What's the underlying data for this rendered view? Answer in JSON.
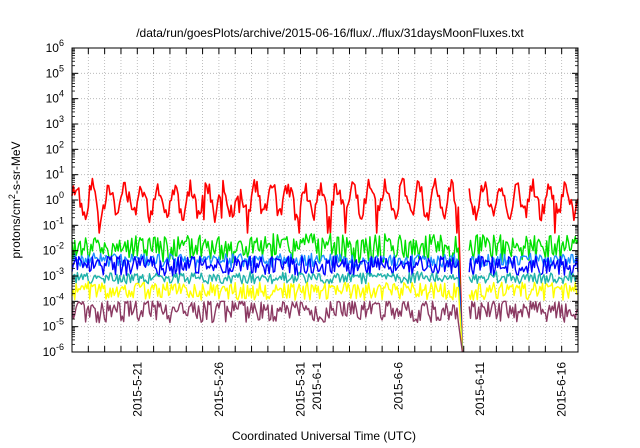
{
  "chart_data": {
    "type": "line",
    "title": "/data/run/goesPlots/archive/2015-06-16/flux/../flux/31daysMoonFluxes.txt",
    "xlabel": "Coordinated Universal Time (UTC)",
    "ylabel": "protons/cm²-s-sr-MeV",
    "yscale": "log",
    "ylim": [
      1e-06,
      1000000.0
    ],
    "xlim": [
      "2015-05-17",
      "2015-06-17"
    ],
    "grid": true,
    "legend": "none",
    "y_ticks": [
      {
        "mant": "10",
        "exp": "-6"
      },
      {
        "mant": "10",
        "exp": "-5"
      },
      {
        "mant": "10",
        "exp": "-4"
      },
      {
        "mant": "10",
        "exp": "-3"
      },
      {
        "mant": "10",
        "exp": "-2"
      },
      {
        "mant": "10",
        "exp": "-1"
      },
      {
        "mant": "10",
        "exp": "0"
      },
      {
        "mant": "10",
        "exp": "1"
      },
      {
        "mant": "10",
        "exp": "2"
      },
      {
        "mant": "10",
        "exp": "3"
      },
      {
        "mant": "10",
        "exp": "4"
      },
      {
        "mant": "10",
        "exp": "5"
      },
      {
        "mant": "10",
        "exp": "6"
      }
    ],
    "x_ticks": [
      {
        "date": "2015-05-21",
        "label": "2015-5-21"
      },
      {
        "date": "2015-05-26",
        "label": "2015-5-26"
      },
      {
        "date": "2015-05-31",
        "label": "2015-5-31"
      },
      {
        "date": "2015-06-01",
        "label": "2015-6-1"
      },
      {
        "date": "2015-06-06",
        "label": "2015-6-6"
      },
      {
        "date": "2015-06-11",
        "label": "2015-6-11"
      },
      {
        "date": "2015-06-16",
        "label": "2015-6-16"
      }
    ],
    "data_gap": [
      "2015-06-09 18:00",
      "2015-06-10 06:00"
    ],
    "series": [
      {
        "color": "#ff0000",
        "baseline": 1.0,
        "range": [
          0.05,
          20
        ],
        "period_days": 1.0
      },
      {
        "color": "#00e000",
        "baseline": 0.012,
        "range": [
          0.003,
          0.05
        ]
      },
      {
        "color": "#1e90ff",
        "baseline": 0.004,
        "range": [
          0.002,
          0.008
        ]
      },
      {
        "color": "#0000ff",
        "baseline": 0.0025,
        "range": [
          0.0008,
          0.006
        ]
      },
      {
        "color": "#20b2aa",
        "baseline": 0.0008,
        "range": [
          0.0005,
          0.0015
        ]
      },
      {
        "color": "#ffff00",
        "baseline": 0.00025,
        "range": [
          0.0001,
          0.0006
        ]
      },
      {
        "color": "#8b3a62",
        "baseline": 4e-05,
        "range": [
          1e-05,
          0.0001
        ]
      }
    ]
  }
}
